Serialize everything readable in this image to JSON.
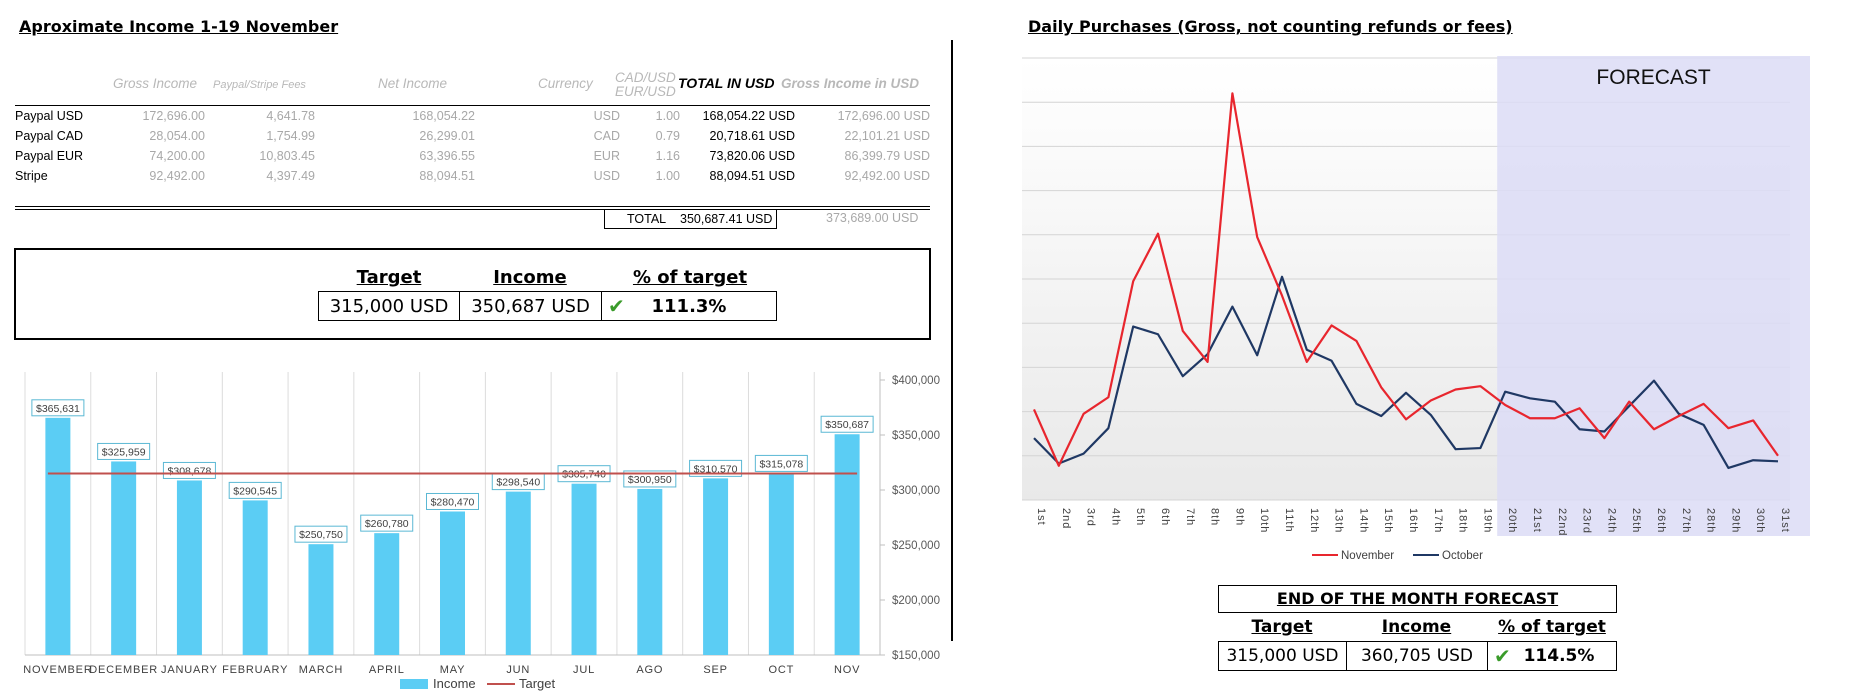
{
  "income": {
    "title": "Aproximate Income 1-19 November",
    "headers": {
      "gross": "Gross Income",
      "fees": "Paypal/Stripe Fees",
      "net": "Net Income",
      "currency": "Currency",
      "rate_top": "CAD/USD",
      "rate_bottom": "EUR/USD",
      "total_usd": "TOTAL IN USD",
      "gross_usd": "Gross Income in USD"
    },
    "rows": [
      {
        "name": "Paypal USD",
        "gross": "172,696.00",
        "fees": "4,641.78",
        "net": "168,054.22",
        "currency": "USD",
        "rate": "1.00",
        "total": "168,054.22 USD",
        "gross_usd": "172,696.00 USD"
      },
      {
        "name": "Paypal CAD",
        "gross": "28,054.00",
        "fees": "1,754.99",
        "net": "26,299.01",
        "currency": "CAD",
        "rate": "0.79",
        "total": "20,718.61 USD",
        "gross_usd": "22,101.21 USD"
      },
      {
        "name": "Paypal EUR",
        "gross": "74,200.00",
        "fees": "10,803.45",
        "net": "63,396.55",
        "currency": "EUR",
        "rate": "1.16",
        "total": "73,820.06 USD",
        "gross_usd": "86,399.79 USD"
      },
      {
        "name": "Stripe",
        "gross": "92,492.00",
        "fees": "4,397.49",
        "net": "88,094.51",
        "currency": "USD",
        "rate": "1.00",
        "total": "88,094.51 USD",
        "gross_usd": "92,492.00 USD"
      }
    ],
    "total_label": "TOTAL",
    "total_value": "350,687.41 USD",
    "total_gross_usd": "373,689.00 USD"
  },
  "kpi_left": {
    "target_label": "Target",
    "income_label": "Income",
    "pct_label": "% of target",
    "target": "315,000 USD",
    "income": "350,687 USD",
    "pct": "111.3%"
  },
  "forecast": {
    "title": "Daily Purchases (Gross, not counting refunds or fees)",
    "band_label": "FORECAST",
    "box_title": "END OF THE MONTH FORECAST",
    "target_label": "Target",
    "income_label": "Income",
    "pct_label": "% of target",
    "target": "315,000 USD",
    "income": "360,705 USD",
    "pct": "114.5%"
  },
  "chart_data": [
    {
      "type": "bar",
      "categories": [
        "NOVEMBER",
        "DECEMBER",
        "JANUARY",
        "FEBRUARY",
        "MARCH",
        "APRIL",
        "MAY",
        "JUN",
        "JUL",
        "AGO",
        "SEP",
        "OCT",
        "NOV"
      ],
      "series": [
        {
          "name": "Income",
          "color": "#5bcdf4",
          "values": [
            365631,
            325959,
            308678,
            290545,
            250750,
            260780,
            280470,
            298540,
            305740,
            300950,
            310570,
            315078,
            350687
          ]
        },
        {
          "name": "Target",
          "type": "line",
          "color": "#c0504d",
          "values": [
            315000,
            315000,
            315000,
            315000,
            315000,
            315000,
            315000,
            315000,
            315000,
            315000,
            315000,
            315000,
            315000
          ]
        }
      ],
      "data_labels": [
        "$365,631",
        "$325,959",
        "$308,678",
        "$290,545",
        "$250,750",
        "$260,780",
        "$280,470",
        "$298,540",
        "$305,740",
        "$300,950",
        "$310,570",
        "$315,078",
        "$350,687"
      ],
      "yticks": [
        "$400,000",
        "$350,000",
        "$300,000",
        "$250,000",
        "$200,000",
        "$150,000"
      ],
      "ylim": [
        150000,
        400000
      ],
      "legend": "bottom"
    },
    {
      "type": "line",
      "x": [
        "1st",
        "2nd",
        "3rd",
        "4th",
        "5th",
        "6th",
        "7th",
        "8th",
        "9th",
        "10th",
        "11th",
        "12th",
        "13th",
        "14th",
        "15th",
        "16th",
        "17th",
        "18th",
        "19th",
        "20th",
        "21st",
        "22nd",
        "23rd",
        "24th",
        "25th",
        "26th",
        "27th",
        "28th",
        "29th",
        "30th",
        "31st"
      ],
      "series": [
        {
          "name": "November",
          "color": "#e8262e",
          "values": [
            8.2,
            3.1,
            7.8,
            9.3,
            19.8,
            24.1,
            15.3,
            12.5,
            36.8,
            23.8,
            18.5,
            12.5,
            15.8,
            14.4,
            10.2,
            7.3,
            9.0,
            10.0,
            10.3,
            8.6,
            7.4,
            7.4,
            8.3,
            5.6,
            8.9,
            6.4,
            7.6,
            8.7,
            6.5,
            7.2,
            4.0
          ]
        },
        {
          "name": "October",
          "color": "#1f3864",
          "values": [
            5.6,
            3.3,
            4.2,
            6.5,
            15.7,
            15.0,
            11.2,
            13.2,
            17.5,
            13.1,
            20.2,
            13.6,
            12.6,
            8.7,
            7.6,
            9.7,
            7.7,
            4.6,
            4.7,
            9.8,
            9.2,
            8.9,
            6.4,
            6.2,
            8.5,
            10.8,
            7.8,
            6.8,
            2.9,
            3.6,
            3.5
          ]
        }
      ],
      "forecast_from": "20th",
      "legend": "bottom"
    }
  ]
}
